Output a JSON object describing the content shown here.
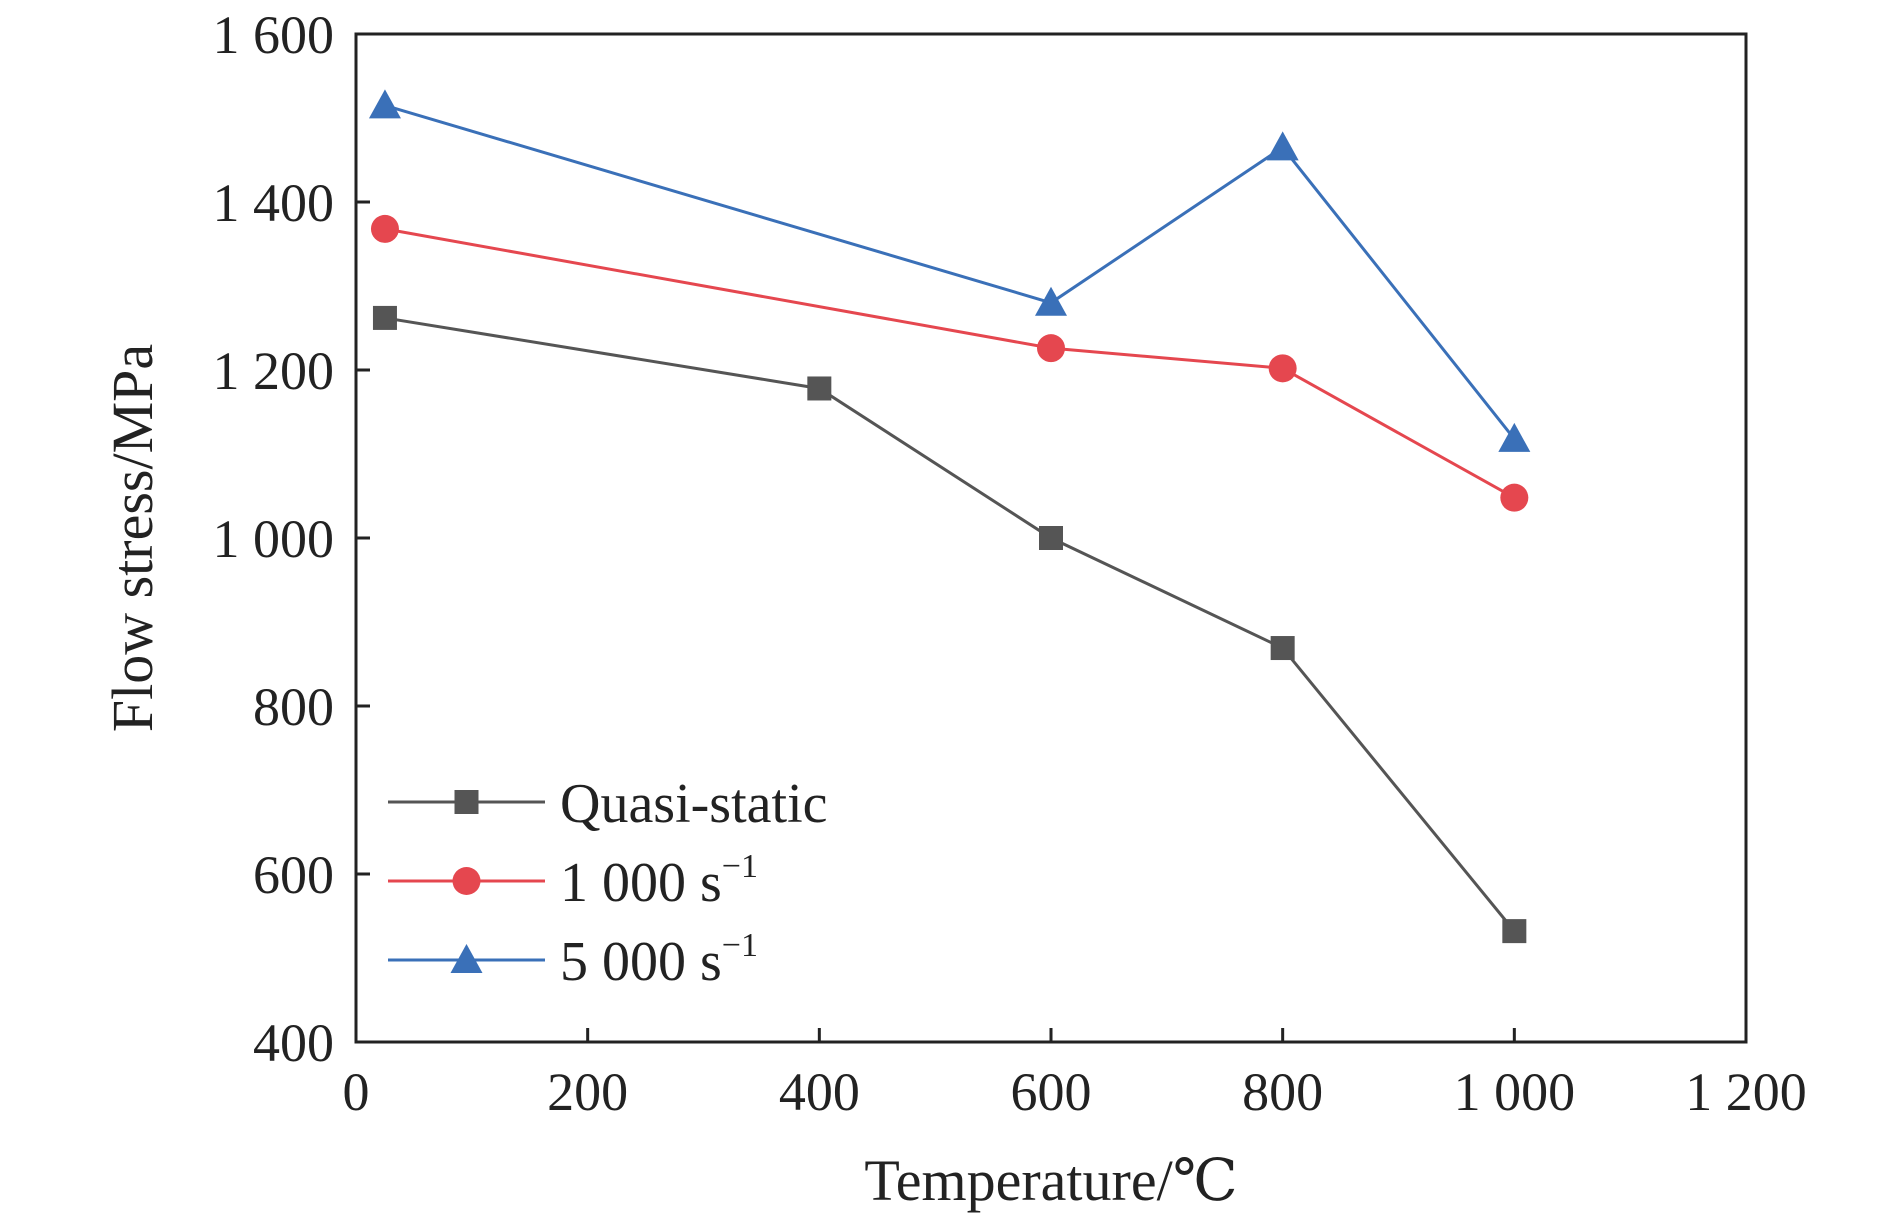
{
  "chart_data": {
    "type": "line",
    "xlabel": "Temperature/℃",
    "ylabel": "Flow stress/MPa",
    "xlim": [
      0,
      1200
    ],
    "ylim": [
      400,
      1600
    ],
    "xticks": [
      0,
      200,
      400,
      600,
      800,
      1000,
      1200
    ],
    "xtick_labels": [
      "0",
      "200",
      "400",
      "600",
      "800",
      "1 000",
      "1 200"
    ],
    "yticks": [
      400,
      600,
      800,
      1000,
      1200,
      1400,
      1600
    ],
    "ytick_labels": [
      "400",
      "600",
      "800",
      "1 000",
      "1 200",
      "1 400",
      "1 600"
    ],
    "grid": false,
    "legend_position": "bottom-left",
    "series": [
      {
        "name": "Quasi-static",
        "marker": "square",
        "color": "#555555",
        "x": [
          25,
          400,
          600,
          800,
          1000
        ],
        "y": [
          1262,
          1178,
          1000,
          869,
          532
        ]
      },
      {
        "name": "1 000 s",
        "name_sup": "−1",
        "marker": "circle",
        "color": "#e5474f",
        "x": [
          25,
          600,
          800,
          1000
        ],
        "y": [
          1368,
          1226,
          1202,
          1048
        ]
      },
      {
        "name": "5 000 s",
        "name_sup": "−1",
        "marker": "triangle",
        "color": "#3a70b8",
        "x": [
          25,
          600,
          800,
          1000
        ],
        "y": [
          1515,
          1280,
          1465,
          1118
        ]
      }
    ]
  }
}
